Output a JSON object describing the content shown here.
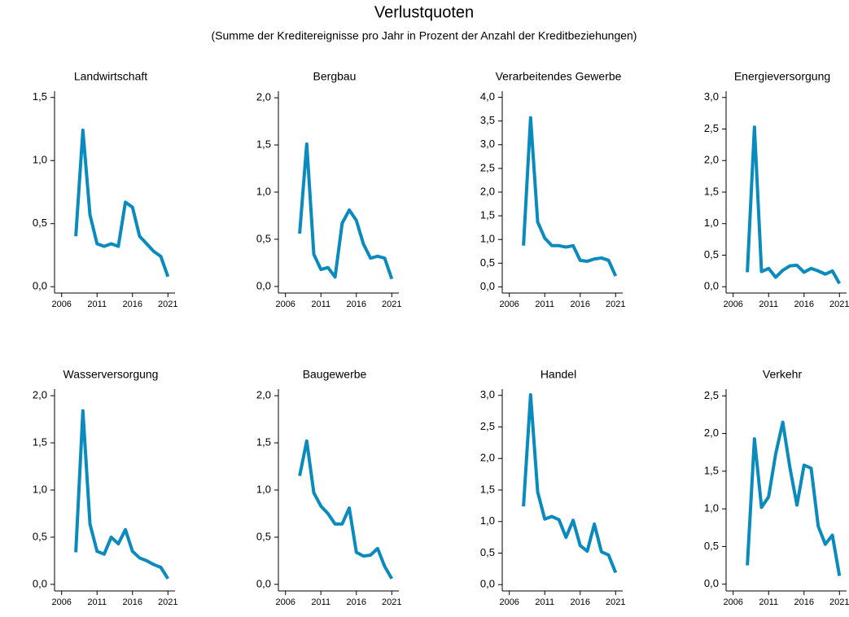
{
  "title": "Verlustquoten",
  "subtitle": "(Summe der Kreditereignisse pro Jahr in Prozent der Anzahl der Kreditbeziehungen)",
  "chart_data": [
    {
      "type": "line",
      "title": "Landwirtschaft",
      "color": "#0a8bbd",
      "x": [
        2008,
        2009,
        2010,
        2011,
        2012,
        2013,
        2014,
        2015,
        2016,
        2017,
        2018,
        2019,
        2020,
        2021
      ],
      "values": [
        0.4,
        1.24,
        0.57,
        0.34,
        0.32,
        0.34,
        0.32,
        0.67,
        0.63,
        0.4,
        0.34,
        0.28,
        0.24,
        0.08
      ],
      "xlim": [
        2005,
        2022
      ],
      "xticks": [
        2006,
        2011,
        2016,
        2021
      ],
      "ylim": [
        -0.05,
        1.55
      ],
      "yticks": [
        {
          "value": 0,
          "label": "0,0"
        },
        {
          "value": 0.5,
          "label": "0,5"
        },
        {
          "value": 1.0,
          "label": "1,0"
        },
        {
          "value": 1.5,
          "label": "1,5"
        }
      ]
    },
    {
      "type": "line",
      "title": "Bergbau",
      "color": "#0a8bbd",
      "x": [
        2008,
        2009,
        2010,
        2011,
        2012,
        2013,
        2014,
        2015,
        2016,
        2017,
        2018,
        2019,
        2020,
        2021
      ],
      "values": [
        0.56,
        1.51,
        0.34,
        0.18,
        0.2,
        0.1,
        0.67,
        0.81,
        0.7,
        0.45,
        0.3,
        0.32,
        0.3,
        0.08
      ],
      "xlim": [
        2005,
        2022
      ],
      "xticks": [
        2006,
        2011,
        2016,
        2021
      ],
      "ylim": [
        -0.07,
        2.07
      ],
      "yticks": [
        {
          "value": 0,
          "label": "0,0"
        },
        {
          "value": 0.5,
          "label": "0,5"
        },
        {
          "value": 1.0,
          "label": "1,0"
        },
        {
          "value": 1.5,
          "label": "1,5"
        },
        {
          "value": 2.0,
          "label": "2,0"
        }
      ]
    },
    {
      "type": "line",
      "title": "Verarbeitendes Gewerbe",
      "color": "#0a8bbd",
      "x": [
        2008,
        2009,
        2010,
        2011,
        2012,
        2013,
        2014,
        2015,
        2016,
        2017,
        2018,
        2019,
        2020,
        2021
      ],
      "values": [
        0.87,
        3.57,
        1.37,
        1.03,
        0.87,
        0.87,
        0.84,
        0.87,
        0.56,
        0.54,
        0.59,
        0.61,
        0.56,
        0.23
      ],
      "xlim": [
        2005,
        2022
      ],
      "xticks": [
        2006,
        2011,
        2016,
        2021
      ],
      "ylim": [
        -0.13,
        4.13
      ],
      "yticks": [
        {
          "value": 0,
          "label": "0,0"
        },
        {
          "value": 0.5,
          "label": "0,5"
        },
        {
          "value": 1.0,
          "label": "1,0"
        },
        {
          "value": 1.5,
          "label": "1,5"
        },
        {
          "value": 2.0,
          "label": "2,0"
        },
        {
          "value": 2.5,
          "label": "2,5"
        },
        {
          "value": 3.0,
          "label": "3,0"
        },
        {
          "value": 3.5,
          "label": "3,5"
        },
        {
          "value": 4.0,
          "label": "4,0"
        }
      ]
    },
    {
      "type": "line",
      "title": "Energieversorgung",
      "color": "#0a8bbd",
      "x": [
        2008,
        2009,
        2010,
        2011,
        2012,
        2013,
        2014,
        2015,
        2016,
        2017,
        2018,
        2019,
        2020,
        2021
      ],
      "values": [
        0.23,
        2.53,
        0.24,
        0.29,
        0.15,
        0.26,
        0.33,
        0.34,
        0.23,
        0.29,
        0.25,
        0.2,
        0.25,
        0.05
      ],
      "xlim": [
        2005,
        2022
      ],
      "xticks": [
        2006,
        2011,
        2016,
        2021
      ],
      "ylim": [
        -0.1,
        3.1
      ],
      "yticks": [
        {
          "value": 0,
          "label": "0,0"
        },
        {
          "value": 0.5,
          "label": "0,5"
        },
        {
          "value": 1.0,
          "label": "1,0"
        },
        {
          "value": 1.5,
          "label": "1,5"
        },
        {
          "value": 2.0,
          "label": "2,0"
        },
        {
          "value": 2.5,
          "label": "2,5"
        },
        {
          "value": 3.0,
          "label": "3,0"
        }
      ]
    },
    {
      "type": "line",
      "title": "Wasserversorgung",
      "color": "#0a8bbd",
      "x": [
        2008,
        2009,
        2010,
        2011,
        2012,
        2013,
        2014,
        2015,
        2016,
        2017,
        2018,
        2019,
        2020,
        2021
      ],
      "values": [
        0.34,
        1.84,
        0.64,
        0.35,
        0.32,
        0.5,
        0.43,
        0.58,
        0.35,
        0.28,
        0.25,
        0.21,
        0.18,
        0.06
      ],
      "xlim": [
        2005,
        2022
      ],
      "xticks": [
        2006,
        2011,
        2016,
        2021
      ],
      "ylim": [
        -0.07,
        2.07
      ],
      "yticks": [
        {
          "value": 0,
          "label": "0,0"
        },
        {
          "value": 0.5,
          "label": "0,5"
        },
        {
          "value": 1.0,
          "label": "1,0"
        },
        {
          "value": 1.5,
          "label": "1,5"
        },
        {
          "value": 2.0,
          "label": "2,0"
        }
      ]
    },
    {
      "type": "line",
      "title": "Baugewerbe",
      "color": "#0a8bbd",
      "x": [
        2008,
        2009,
        2010,
        2011,
        2012,
        2013,
        2014,
        2015,
        2016,
        2017,
        2018,
        2019,
        2020,
        2021
      ],
      "values": [
        1.15,
        1.52,
        0.97,
        0.83,
        0.75,
        0.64,
        0.64,
        0.81,
        0.34,
        0.3,
        0.31,
        0.38,
        0.19,
        0.06
      ],
      "xlim": [
        2005,
        2022
      ],
      "xticks": [
        2006,
        2011,
        2016,
        2021
      ],
      "ylim": [
        -0.07,
        2.07
      ],
      "yticks": [
        {
          "value": 0,
          "label": "0,0"
        },
        {
          "value": 0.5,
          "label": "0,5"
        },
        {
          "value": 1.0,
          "label": "1,0"
        },
        {
          "value": 1.5,
          "label": "1,5"
        },
        {
          "value": 2.0,
          "label": "2,0"
        }
      ]
    },
    {
      "type": "line",
      "title": "Handel",
      "color": "#0a8bbd",
      "x": [
        2008,
        2009,
        2010,
        2011,
        2012,
        2013,
        2014,
        2015,
        2016,
        2017,
        2018,
        2019,
        2020,
        2021
      ],
      "values": [
        1.24,
        3.01,
        1.47,
        1.04,
        1.08,
        1.03,
        0.75,
        1.02,
        0.62,
        0.53,
        0.96,
        0.52,
        0.47,
        0.19
      ],
      "xlim": [
        2005,
        2022
      ],
      "xticks": [
        2006,
        2011,
        2016,
        2021
      ],
      "ylim": [
        -0.1,
        3.1
      ],
      "yticks": [
        {
          "value": 0,
          "label": "0,0"
        },
        {
          "value": 0.5,
          "label": "0,5"
        },
        {
          "value": 1.0,
          "label": "1,0"
        },
        {
          "value": 1.5,
          "label": "1,5"
        },
        {
          "value": 2.0,
          "label": "2,0"
        },
        {
          "value": 2.5,
          "label": "2,5"
        },
        {
          "value": 3.0,
          "label": "3,0"
        }
      ]
    },
    {
      "type": "line",
      "title": "Verkehr",
      "color": "#0a8bbd",
      "x": [
        2008,
        2009,
        2010,
        2011,
        2012,
        2013,
        2014,
        2015,
        2016,
        2017,
        2018,
        2019,
        2020,
        2021
      ],
      "values": [
        0.25,
        1.93,
        1.02,
        1.16,
        1.73,
        2.15,
        1.55,
        1.05,
        1.58,
        1.54,
        0.77,
        0.53,
        0.65,
        0.11
      ],
      "xlim": [
        2005,
        2022
      ],
      "xticks": [
        2006,
        2011,
        2016,
        2021
      ],
      "ylim": [
        -0.09,
        2.59
      ],
      "yticks": [
        {
          "value": 0,
          "label": "0,0"
        },
        {
          "value": 0.5,
          "label": "0,5"
        },
        {
          "value": 1.0,
          "label": "1,0"
        },
        {
          "value": 1.5,
          "label": "1,5"
        },
        {
          "value": 2.0,
          "label": "2,0"
        },
        {
          "value": 2.5,
          "label": "2,5"
        }
      ]
    }
  ]
}
